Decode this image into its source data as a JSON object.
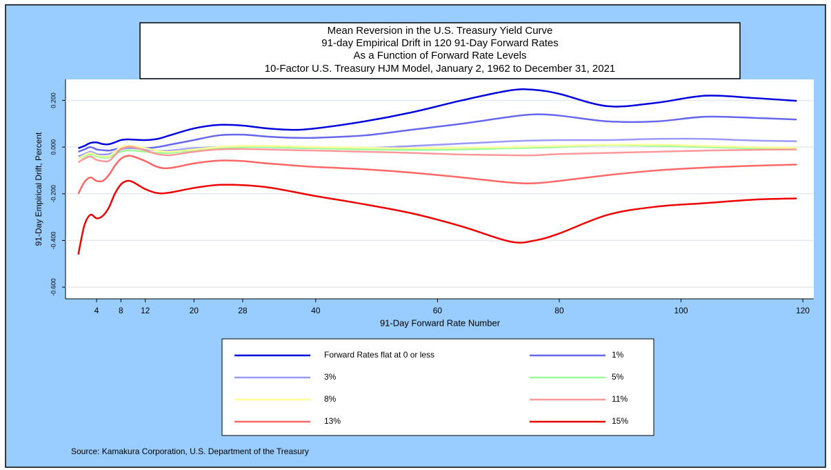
{
  "chart_data": {
    "type": "line",
    "title": "Mean Reversion in the U.S. Treasury Yield Curve",
    "subtitles": [
      "91-day Empirical Drift in 120 91-Day Forward Rates",
      "As a Function of Forward Rate Levels",
      "10-Factor U.S. Treasury HJM Model, January 2, 1962 to December 31, 2021"
    ],
    "xlabel": "91-Day Forward Rate Number",
    "ylabel": "91-Day Empirical Drift, Percent",
    "source": "Source: Kamakura Corporation, U.S. Department of the Treasury",
    "x": [
      1,
      2,
      3,
      4,
      5,
      6,
      7,
      8,
      9,
      10,
      12,
      14,
      16,
      20,
      24,
      28,
      32,
      36,
      40,
      48,
      56,
      64,
      72,
      76,
      80,
      88,
      96,
      104,
      112,
      119
    ],
    "xlim": [
      -1.1,
      121.8
    ],
    "xticks": [
      4,
      8,
      12,
      20,
      28,
      40,
      60,
      80,
      100,
      120
    ],
    "ylim": [
      -0.65,
      0.29
    ],
    "yticks": [
      {
        "value": -0.6,
        "label": "-0.600"
      },
      {
        "value": -0.4,
        "label": "-0.400"
      },
      {
        "value": -0.2,
        "label": "-0.200"
      },
      {
        "value": 0,
        "label": "0.000"
      },
      {
        "value": 0.2,
        "label": "0.200"
      }
    ],
    "grid": true,
    "legend": "bottom",
    "series": [
      {
        "name": "Forward Rates flat at 0 or less",
        "color": "#0000dd",
        "values": [
          -0.005,
          0.005,
          0.018,
          0.02,
          0.013,
          0.012,
          0.02,
          0.03,
          0.033,
          0.032,
          0.03,
          0.035,
          0.05,
          0.08,
          0.095,
          0.092,
          0.08,
          0.074,
          0.08,
          0.11,
          0.15,
          0.2,
          0.243,
          0.245,
          0.228,
          0.175,
          0.19,
          0.22,
          0.21,
          0.198
        ]
      },
      {
        "name": "1%",
        "color": "#6666ee",
        "values": [
          -0.02,
          -0.01,
          0.0,
          -0.01,
          -0.013,
          -0.015,
          -0.01,
          -0.005,
          0.0,
          0.0,
          -0.005,
          0.0,
          0.01,
          0.03,
          0.05,
          0.053,
          0.045,
          0.04,
          0.04,
          0.05,
          0.075,
          0.1,
          0.13,
          0.14,
          0.135,
          0.11,
          0.11,
          0.13,
          0.125,
          0.118
        ]
      },
      {
        "name": "3%",
        "color": "#9999ff",
        "values": [
          -0.04,
          -0.03,
          -0.02,
          -0.03,
          -0.032,
          -0.03,
          -0.02,
          -0.01,
          -0.005,
          -0.005,
          -0.01,
          -0.015,
          -0.015,
          -0.005,
          0.0,
          0.003,
          0.0,
          -0.003,
          -0.005,
          -0.005,
          0.005,
          0.015,
          0.025,
          0.028,
          0.03,
          0.03,
          0.035,
          0.035,
          0.028,
          0.025
        ]
      },
      {
        "name": "5%",
        "color": "#99ff99",
        "values": [
          -0.05,
          -0.04,
          -0.03,
          -0.04,
          -0.045,
          -0.045,
          -0.03,
          -0.02,
          -0.015,
          -0.015,
          -0.02,
          -0.025,
          -0.025,
          -0.015,
          -0.005,
          0.0,
          0.0,
          -0.003,
          -0.005,
          -0.01,
          -0.012,
          -0.01,
          -0.005,
          -0.003,
          0.0,
          0.008,
          0.005,
          0.0,
          -0.005,
          -0.005
        ]
      },
      {
        "name": "8%",
        "color": "#ffff99",
        "values": [
          -0.05,
          -0.035,
          -0.025,
          -0.035,
          -0.04,
          -0.04,
          -0.02,
          0.0,
          0.005,
          0.005,
          -0.005,
          -0.015,
          -0.02,
          -0.01,
          0.0,
          0.005,
          0.005,
          0.003,
          0.0,
          -0.003,
          -0.005,
          -0.003,
          0.0,
          0.003,
          0.005,
          0.01,
          0.01,
          0.005,
          0.0,
          -0.003
        ]
      },
      {
        "name": "11%",
        "color": "#ff9999",
        "values": [
          -0.065,
          -0.05,
          -0.04,
          -0.055,
          -0.06,
          -0.06,
          -0.035,
          -0.01,
          0.0,
          0.0,
          -0.015,
          -0.03,
          -0.035,
          -0.02,
          -0.01,
          -0.008,
          -0.01,
          -0.013,
          -0.015,
          -0.02,
          -0.025,
          -0.032,
          -0.035,
          -0.035,
          -0.03,
          -0.025,
          -0.02,
          -0.015,
          -0.012,
          -0.01
        ]
      },
      {
        "name": "13%",
        "color": "#ff6666",
        "values": [
          -0.2,
          -0.15,
          -0.13,
          -0.145,
          -0.145,
          -0.12,
          -0.08,
          -0.05,
          -0.038,
          -0.04,
          -0.06,
          -0.085,
          -0.09,
          -0.07,
          -0.058,
          -0.06,
          -0.07,
          -0.078,
          -0.085,
          -0.095,
          -0.11,
          -0.13,
          -0.152,
          -0.155,
          -0.145,
          -0.12,
          -0.1,
          -0.088,
          -0.08,
          -0.075
        ]
      },
      {
        "name": "15%",
        "color": "#ee0000",
        "values": [
          -0.46,
          -0.335,
          -0.29,
          -0.305,
          -0.295,
          -0.26,
          -0.2,
          -0.16,
          -0.145,
          -0.15,
          -0.18,
          -0.197,
          -0.195,
          -0.175,
          -0.162,
          -0.163,
          -0.172,
          -0.19,
          -0.21,
          -0.245,
          -0.285,
          -0.34,
          -0.405,
          -0.4,
          -0.37,
          -0.29,
          -0.255,
          -0.24,
          -0.225,
          -0.22
        ]
      }
    ]
  }
}
